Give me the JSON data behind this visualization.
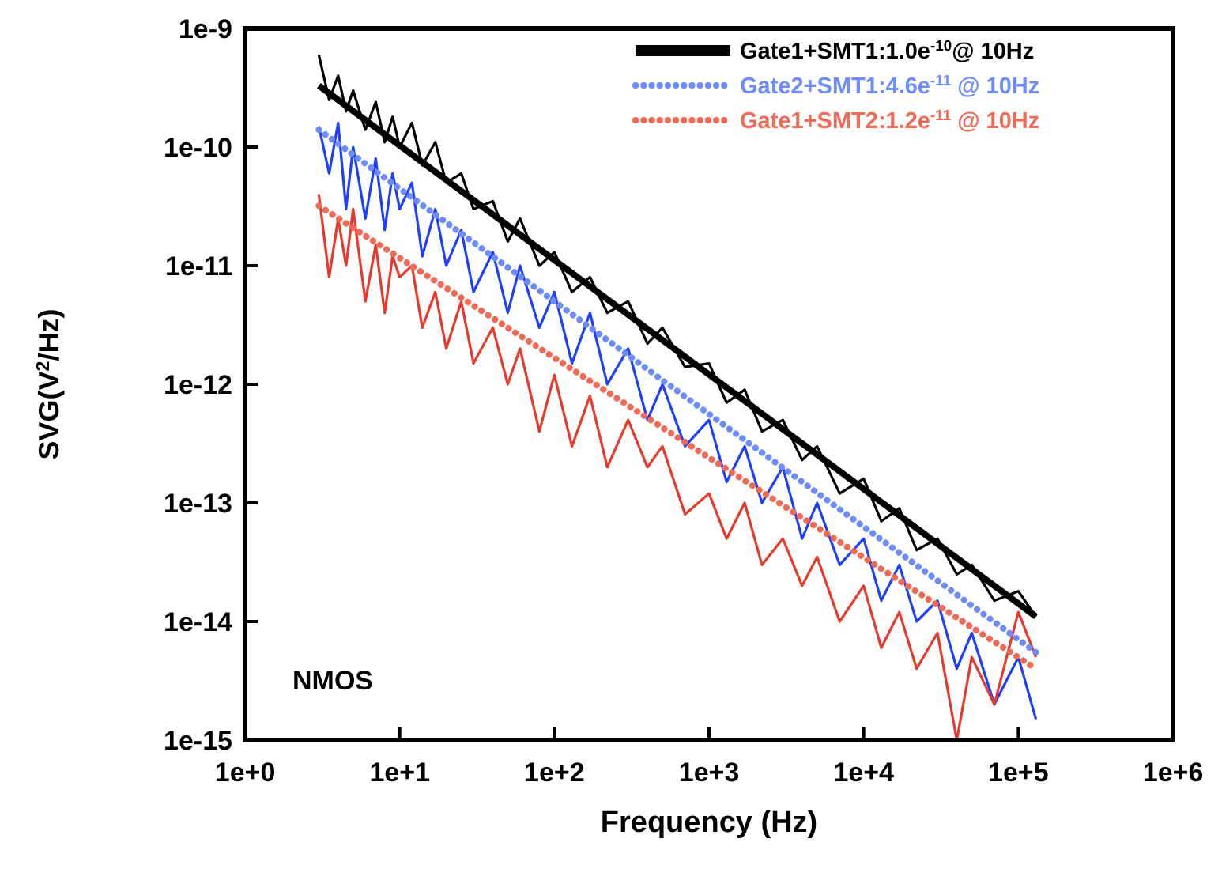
{
  "chart_data": {
    "type": "line",
    "xlabel": "Frequency (Hz)",
    "ylabel": "SVG(V$^{2}$/Hz)",
    "log": "xy",
    "legend": "top right",
    "grid": false,
    "xlim": [
      1,
      1000000
    ],
    "ylim": [
      1e-15,
      1e-09
    ],
    "xticks": [
      {
        "value": 1,
        "label": "1e+0"
      },
      {
        "value": 10,
        "label": "1e+1"
      },
      {
        "value": 100,
        "label": "1e+2"
      },
      {
        "value": 1000,
        "label": "1e+3"
      },
      {
        "value": 10000,
        "label": "1e+4"
      },
      {
        "value": 100000,
        "label": "1e+5"
      },
      {
        "value": 1000000,
        "label": "1e+6"
      }
    ],
    "yticks": [
      {
        "value": 1e-15,
        "label": "1e-15"
      },
      {
        "value": 1e-14,
        "label": "1e-14"
      },
      {
        "value": 1e-13,
        "label": "1e-13"
      },
      {
        "value": 1e-12,
        "label": "1e-12"
      },
      {
        "value": 1e-11,
        "label": "1e-11"
      },
      {
        "value": 1e-10,
        "label": "1e-10"
      },
      {
        "value": 1e-09,
        "label": "1e-9"
      }
    ],
    "annotations": [
      "NMOS"
    ],
    "series": [
      {
        "color": "#000000",
        "x": [
          3,
          3.5,
          4,
          4.5,
          5,
          6,
          7,
          8,
          9,
          10,
          12,
          14,
          17,
          20,
          25,
          30,
          40,
          50,
          60,
          80,
          100,
          130,
          170,
          220,
          300,
          400,
          500,
          700,
          1000,
          1300,
          1700,
          2200,
          3000,
          4000,
          5000,
          7000,
          10000,
          13000,
          17000,
          22000,
          30000,
          40000,
          50000,
          70000,
          100000,
          130000
        ],
        "values": [
          6e-10,
          2.5e-10,
          4e-10,
          2e-10,
          3e-10,
          1.4e-10,
          2.4e-10,
          1.1e-10,
          1.8e-10,
          1e-10,
          1.6e-10,
          7e-11,
          1.1e-10,
          5e-11,
          6e-11,
          3e-11,
          3.5e-11,
          1.6e-11,
          2.5e-11,
          1e-11,
          1.3e-11,
          6e-12,
          8e-12,
          4e-12,
          5e-12,
          2.2e-12,
          3e-12,
          1.4e-12,
          1.5e-12,
          7e-13,
          9e-13,
          4e-13,
          5e-13,
          2.3e-13,
          3e-13,
          1.2e-13,
          1.6e-13,
          7e-14,
          9e-14,
          4e-14,
          5e-14,
          2.5e-14,
          3e-14,
          1.5e-14,
          1.8e-14,
          1.1e-14
        ]
      },
      {
        "color": "#1f3fff",
        "x": [
          3,
          3.5,
          4,
          4.5,
          5,
          6,
          7,
          8,
          9,
          10,
          12,
          14,
          17,
          20,
          25,
          30,
          40,
          50,
          60,
          80,
          100,
          130,
          170,
          220,
          300,
          400,
          500,
          700,
          1000,
          1300,
          1700,
          2200,
          3000,
          4000,
          5000,
          7000,
          10000,
          13000,
          17000,
          22000,
          30000,
          40000,
          50000,
          70000,
          100000,
          130000
        ],
        "values": [
          1.5e-10,
          6e-11,
          1.6e-10,
          3e-11,
          1e-10,
          2.5e-11,
          8e-11,
          2e-11,
          6e-11,
          3e-11,
          5e-11,
          1.2e-11,
          3e-11,
          1e-11,
          2e-11,
          6e-12,
          1.3e-11,
          4e-12,
          1e-11,
          3e-12,
          6e-12,
          1.5e-12,
          4e-12,
          1e-12,
          2e-12,
          5e-13,
          1e-12,
          3e-13,
          5e-13,
          1.5e-13,
          3e-13,
          1e-13,
          2e-13,
          5e-14,
          1e-13,
          3e-14,
          5e-14,
          1.5e-14,
          3e-14,
          1e-14,
          1.5e-14,
          4e-15,
          8e-15,
          2e-15,
          5e-15,
          1.5e-15
        ]
      },
      {
        "color": "#e8392b",
        "x": [
          3,
          3.5,
          4,
          4.5,
          5,
          6,
          7,
          8,
          9,
          10,
          12,
          14,
          17,
          20,
          25,
          30,
          40,
          50,
          60,
          80,
          100,
          130,
          170,
          220,
          300,
          400,
          500,
          700,
          1000,
          1300,
          1700,
          2200,
          3000,
          4000,
          5000,
          7000,
          10000,
          13000,
          17000,
          22000,
          30000,
          40000,
          50000,
          70000,
          100000,
          130000
        ],
        "values": [
          4e-11,
          8e-12,
          2.5e-11,
          1e-11,
          3e-11,
          5e-12,
          1.5e-11,
          4e-12,
          1.2e-11,
          8e-12,
          1e-11,
          3e-12,
          6e-12,
          2e-12,
          5e-12,
          1.5e-12,
          3e-12,
          1e-12,
          2e-12,
          4e-13,
          1.2e-12,
          3e-13,
          8e-13,
          2e-13,
          5e-13,
          2e-13,
          3e-13,
          8e-14,
          1.2e-13,
          5e-14,
          1e-13,
          3e-14,
          5e-14,
          2e-14,
          3.5e-14,
          1e-14,
          2e-14,
          6e-15,
          1.2e-14,
          4e-15,
          8e-15,
          1e-15,
          5e-15,
          2e-15,
          1.2e-14,
          5e-15
        ]
      },
      {
        "name": "Gate1+SMT1:1.0e$^{-10}$@ 10Hz",
        "color": "#000000",
        "line_style": "solid",
        "x": [
          3,
          130000
        ],
        "values": [
          3.3e-10,
          1.1e-14
        ]
      },
      {
        "name": "Gate2+SMT1:4.6e$^{-11}$ @ 10Hz",
        "color": "#6f8cff",
        "line_style": "dotted",
        "x": [
          3,
          130000
        ],
        "values": [
          1.4e-10,
          5.5e-15
        ]
      },
      {
        "name": "Gate1+SMT2:1.2e$^{-11}$ @ 10Hz",
        "color": "#f06a55",
        "line_style": "dotted",
        "x": [
          3,
          130000
        ],
        "values": [
          3.2e-11,
          4e-15
        ]
      }
    ]
  }
}
